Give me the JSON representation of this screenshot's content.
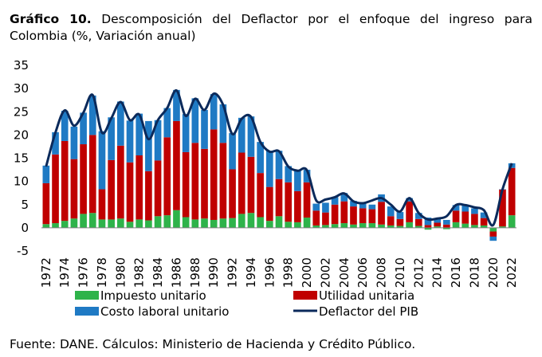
{
  "title": {
    "label": "Gráfico 10.",
    "text": "Descomposición del Deflactor por el enfoque del ingreso para Colombia (%, Variación anual)"
  },
  "source": "Fuente: DANE. Cálculos: Ministerio de Hacienda y Crédito Público.",
  "chart_data": {
    "type": "bar",
    "stacked": true,
    "ylim": [
      -5,
      35
    ],
    "yticks": [
      -5,
      0,
      5,
      10,
      15,
      20,
      25,
      30,
      35
    ],
    "x_tick_labels": [
      "1972",
      "1974",
      "1976",
      "1978",
      "1980",
      "1982",
      "1984",
      "1986",
      "1988",
      "1990",
      "1992",
      "1994",
      "1996",
      "1998",
      "2000",
      "2002",
      "2004",
      "2006",
      "2008",
      "2010",
      "2012",
      "2014",
      "2016",
      "2018",
      "2020",
      "2022"
    ],
    "categories": [
      1972,
      1973,
      1974,
      1975,
      1976,
      1977,
      1978,
      1979,
      1980,
      1981,
      1982,
      1983,
      1984,
      1985,
      1986,
      1987,
      1988,
      1989,
      1990,
      1991,
      1992,
      1993,
      1994,
      1995,
      1996,
      1997,
      1998,
      1999,
      2000,
      2001,
      2002,
      2003,
      2004,
      2005,
      2006,
      2007,
      2008,
      2009,
      2010,
      2011,
      2012,
      2013,
      2014,
      2015,
      2016,
      2017,
      2018,
      2019,
      2020,
      2021,
      2022
    ],
    "legend_position": "bottom",
    "series": [
      {
        "name": "Impuesto unitario",
        "kind": "bar",
        "color": "#2eb34a",
        "values": [
          0.8,
          1.0,
          1.5,
          2.0,
          3.0,
          3.2,
          1.8,
          1.8,
          2.0,
          1.3,
          1.8,
          1.6,
          2.5,
          2.7,
          3.8,
          2.3,
          1.8,
          2.0,
          1.7,
          2.0,
          2.1,
          3.0,
          3.2,
          2.3,
          1.5,
          2.5,
          1.3,
          1.2,
          2.2,
          0.5,
          0.6,
          0.8,
          1.0,
          0.7,
          1.0,
          1.0,
          0.7,
          0.5,
          0.4,
          1.2,
          0.4,
          -0.4,
          0.3,
          -0.3,
          1.2,
          0.9,
          0.6,
          0.5,
          -0.8,
          0.3,
          2.7
        ]
      },
      {
        "name": "Utilidad unitaria",
        "kind": "bar",
        "color": "#c00000",
        "values": [
          8.8,
          14.8,
          17.2,
          12.8,
          15.0,
          16.8,
          6.5,
          12.8,
          15.7,
          12.8,
          13.8,
          10.6,
          12.0,
          16.8,
          19.2,
          14.0,
          16.5,
          15.0,
          19.5,
          16.3,
          10.5,
          13.2,
          12.1,
          9.5,
          7.3,
          8.0,
          8.5,
          6.7,
          7.6,
          3.2,
          2.7,
          4.2,
          4.7,
          3.9,
          3.2,
          3.0,
          4.9,
          2.0,
          1.5,
          4.5,
          1.5,
          0.6,
          0.8,
          0.7,
          2.5,
          2.6,
          2.4,
          1.6,
          -1.1,
          8.0,
          10.2
        ]
      },
      {
        "name": "Costo laboral unitario",
        "kind": "bar",
        "color": "#1f7ac4",
        "values": [
          3.8,
          4.8,
          6.5,
          7.0,
          6.8,
          8.5,
          12.5,
          9.2,
          9.5,
          9.0,
          9.0,
          10.8,
          8.7,
          6.3,
          6.7,
          8.2,
          9.6,
          8.4,
          7.6,
          8.3,
          7.8,
          7.5,
          8.7,
          6.7,
          7.8,
          6.1,
          3.5,
          4.5,
          2.7,
          1.5,
          2.1,
          1.6,
          1.8,
          1.2,
          1.2,
          1.0,
          1.6,
          2.1,
          1.5,
          0.7,
          1.3,
          1.6,
          0.9,
          1.0,
          1.2,
          1.4,
          1.2,
          1.2,
          -0.9,
          0.0,
          1.0
        ]
      },
      {
        "name": "Deflactor del PIB",
        "kind": "line",
        "color": "#0b2a5b",
        "values": [
          13.2,
          20.5,
          25.3,
          22.0,
          24.8,
          28.6,
          20.5,
          23.6,
          27.1,
          23.2,
          24.4,
          19.1,
          23.2,
          25.8,
          29.6,
          24.1,
          27.8,
          25.4,
          28.9,
          26.5,
          20.2,
          23.5,
          23.9,
          18.5,
          16.4,
          16.5,
          13.2,
          12.3,
          12.4,
          5.9,
          6.1,
          6.6,
          7.4,
          5.7,
          5.3,
          5.9,
          6.4,
          5.0,
          3.5,
          6.4,
          3.2,
          1.8,
          2.0,
          2.5,
          4.9,
          4.9,
          4.4,
          3.8,
          0.6,
          8.3,
          13.9
        ]
      }
    ]
  }
}
